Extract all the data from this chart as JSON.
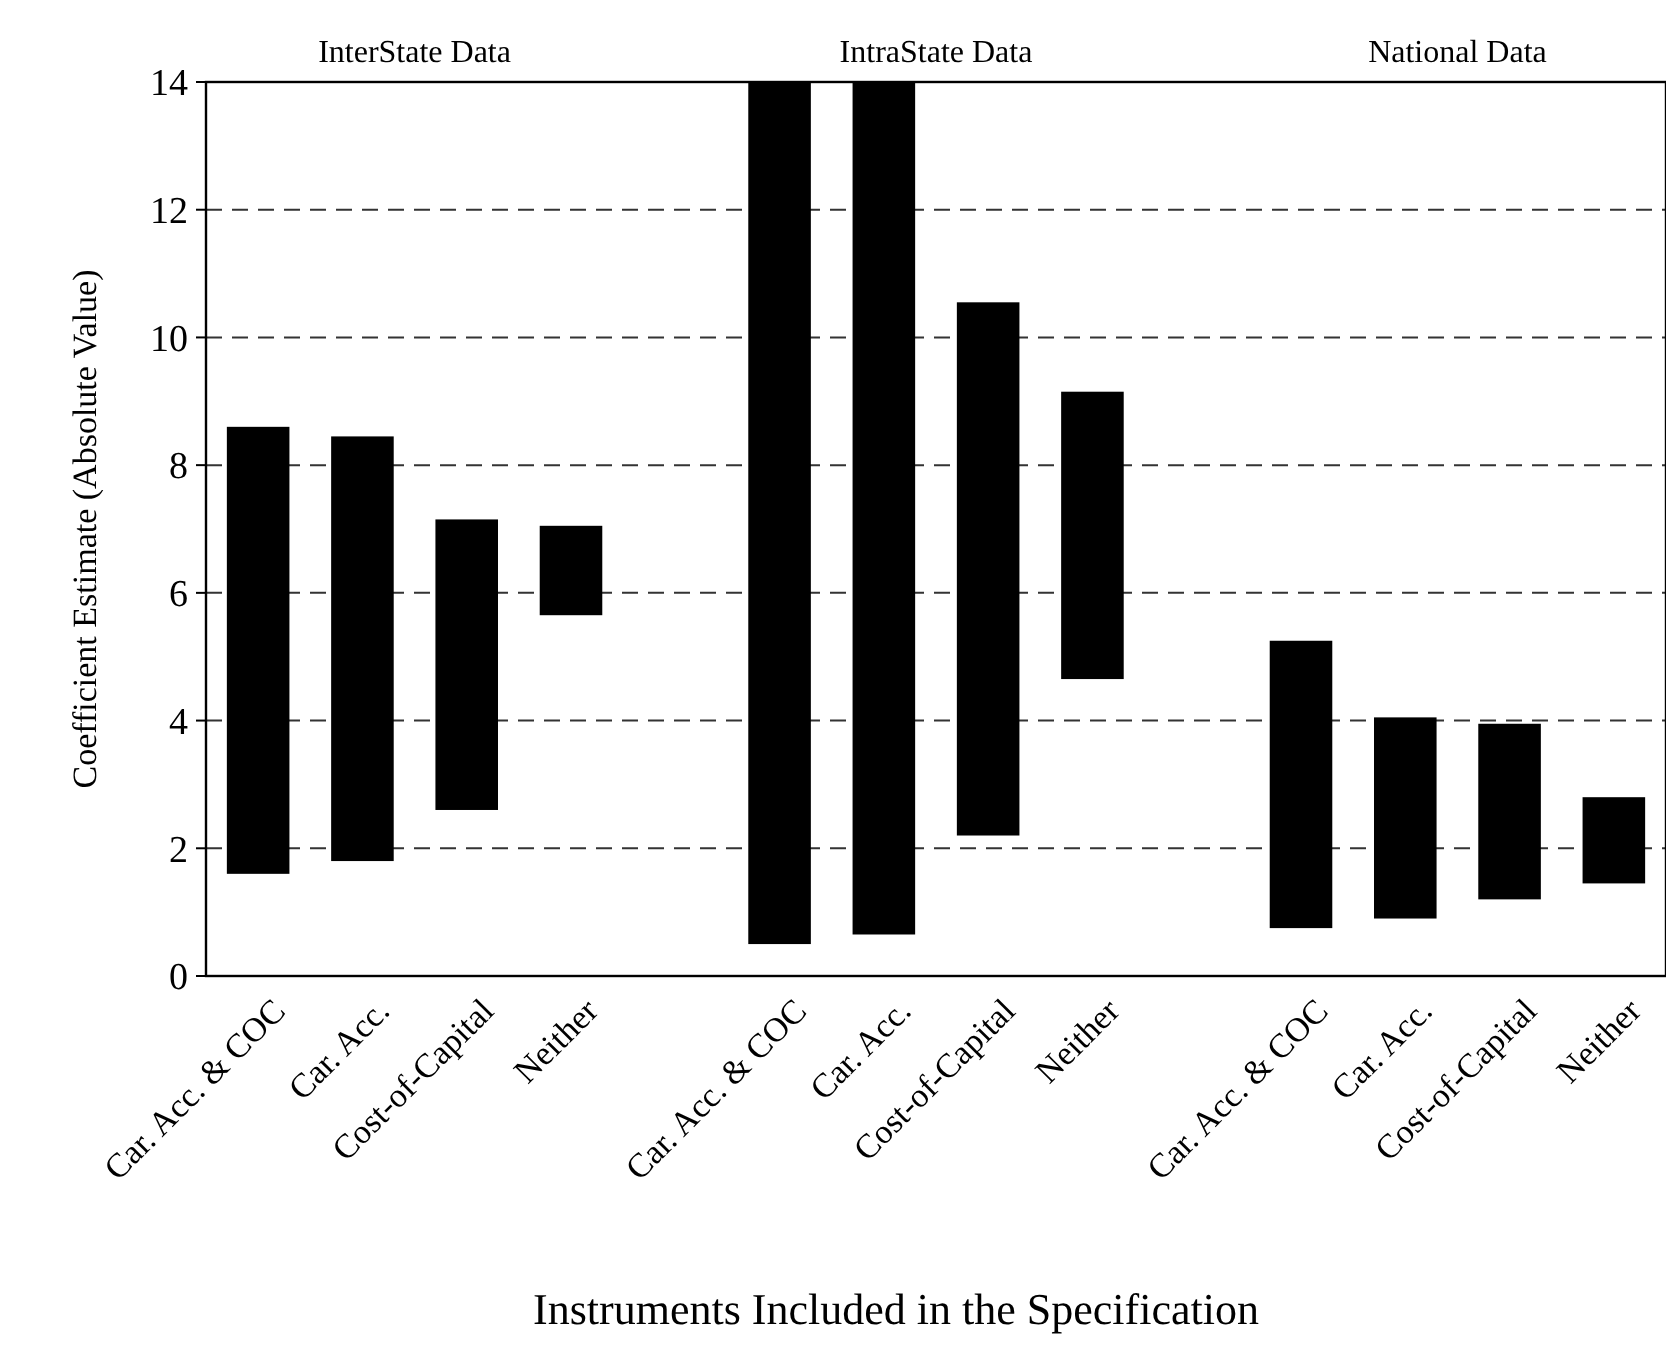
{
  "chart_data": {
    "type": "bar",
    "xlabel": "Instruments Included in the Specification",
    "ylabel": "Coefficient Estimate (Absolute Value)",
    "annotations": [
      "InterState Data",
      "IntraState Data",
      "National Data"
    ],
    "categories": [
      "Car. Acc. & COC",
      "Car. Acc.",
      "Cost-of-Capital",
      "Neither",
      null,
      "Car. Acc. & COC",
      "Car. Acc.",
      "Cost-of-Capital",
      "Neither",
      null,
      "Car. Acc. & COC",
      "Car. Acc.",
      "Cost-of-Capital",
      "Neither"
    ],
    "base": [
      1.6,
      1.8,
      2.6,
      5.65,
      null,
      0.5,
      0.65,
      2.2,
      4.65,
      null,
      0.75,
      0.9,
      1.2,
      1.45
    ],
    "values": [
      7.0,
      6.65,
      4.55,
      1.4,
      null,
      13.5,
      13.35,
      8.35,
      4.5,
      null,
      4.5,
      3.15,
      2.75,
      1.35
    ],
    "color": "#000000",
    "ylim": [
      0,
      14
    ],
    "yticks": [
      0,
      2,
      4,
      6,
      8,
      10,
      12,
      14
    ],
    "grid": "y"
  }
}
